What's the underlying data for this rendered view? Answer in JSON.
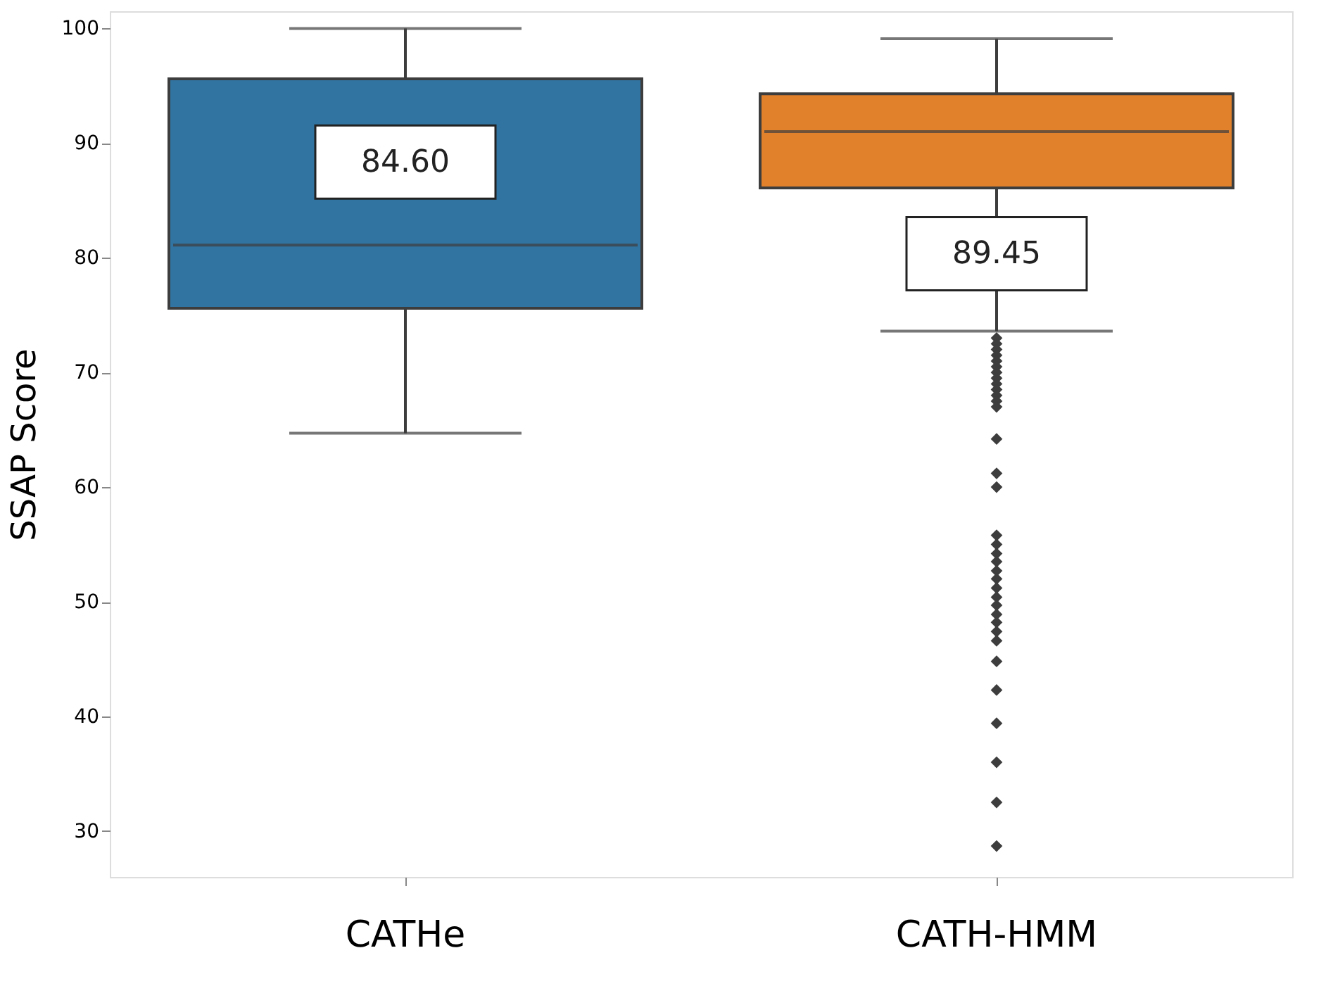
{
  "chart_data": {
    "type": "box",
    "ylabel": "SSAP Score",
    "categories": [
      "CATHe",
      "CATH-HMM"
    ],
    "colors": [
      "#3274a1",
      "#e1812c"
    ],
    "boxes": [
      {
        "low": 64.7,
        "q1": 75.6,
        "median": 81.1,
        "q3": 95.6,
        "high": 100
      },
      {
        "low": 73.6,
        "q1": 86.1,
        "median": 91.0,
        "q3": 94.3,
        "high": 99.1,
        "outliers": [
          73,
          72.5,
          72,
          71.5,
          71,
          70.5,
          70,
          69.5,
          69,
          68.5,
          68,
          67.5,
          67,
          64.2,
          61.2,
          60.0,
          55.8,
          55.0,
          54.2,
          53.5,
          52.7,
          52.0,
          51.2,
          50.4,
          49.7,
          48.9,
          48.2,
          47.4,
          46.6,
          44.8,
          42.3,
          39.4,
          36.0,
          32.5,
          28.7
        ]
      }
    ],
    "annotations": [
      "84.60",
      "89.45"
    ],
    "ylim": [
      26,
      101.5
    ],
    "yticks": [
      30,
      40,
      50,
      60,
      70,
      80,
      90,
      100
    ],
    "grid": false,
    "legend": false,
    "marker": "diamond"
  }
}
